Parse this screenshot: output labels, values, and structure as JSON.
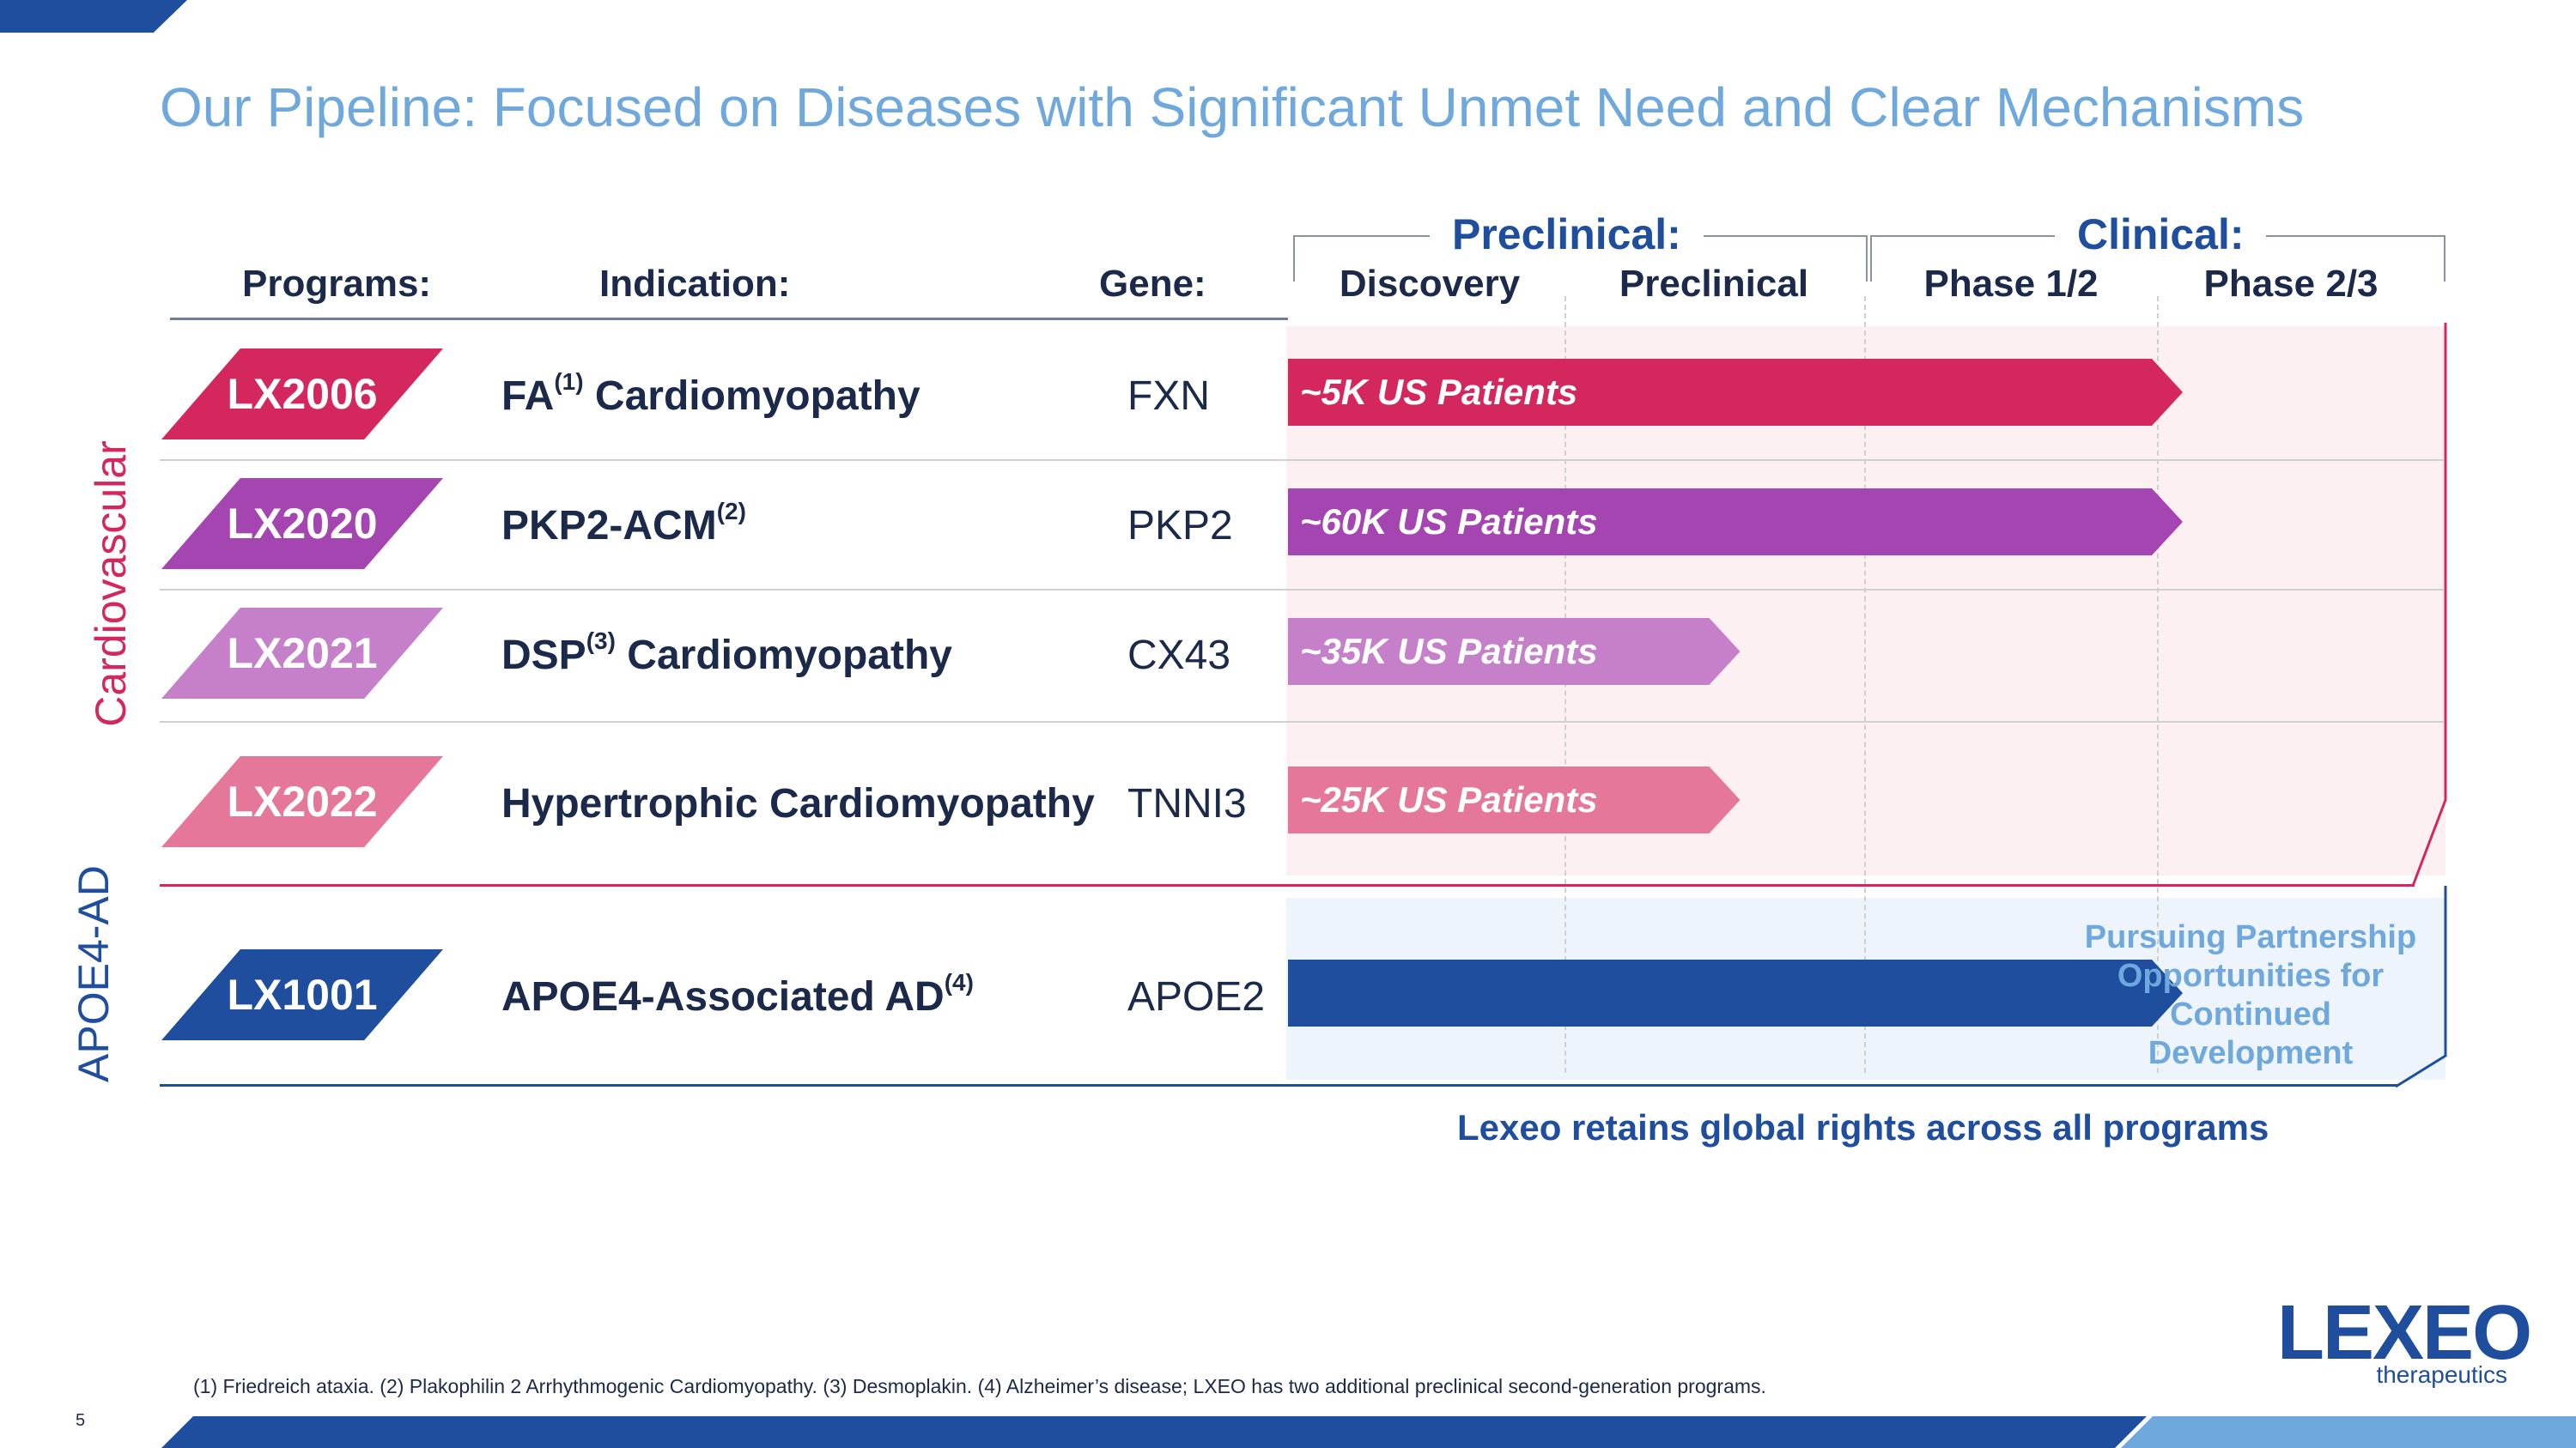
{
  "title": "Our Pipeline: Focused on Diseases with Significant Unmet Need and Clear Mechanisms",
  "columns": {
    "programs": "Programs:",
    "indication": "Indication:",
    "gene": "Gene:"
  },
  "stage_groups": {
    "preclinical": "Preclinical:",
    "clinical": "Clinical:"
  },
  "phases": [
    "Discovery",
    "Preclinical",
    "Phase 1/2",
    "Phase 2/3"
  ],
  "categories": {
    "cardiovascular": "Cardiovascular",
    "apoe4": "APOE4-AD"
  },
  "programs": [
    {
      "id": "LX2006",
      "indication": "FA",
      "sup": "(1)",
      "indication_rest": " Cardiomyopathy",
      "gene": "FXN",
      "bar_label": "~5K US Patients",
      "color": "#D4275E",
      "progress_phase": 3
    },
    {
      "id": "LX2020",
      "indication": "PKP2-ACM",
      "sup": "(2)",
      "indication_rest": "",
      "gene": "PKP2",
      "bar_label": "~60K US Patients",
      "color": "#A445B2",
      "progress_phase": 3
    },
    {
      "id": "LX2021",
      "indication": "DSP",
      "sup": "(3)",
      "indication_rest": " Cardiomyopathy",
      "gene": "CX43",
      "bar_label": "~35K US Patients",
      "color": "#C580C9",
      "progress_phase": 1.5
    },
    {
      "id": "LX2022",
      "indication": "Hypertrophic Cardiomyopathy",
      "sup": "",
      "indication_rest": "",
      "gene": "TNNI3",
      "bar_label": "~25K US Patients",
      "color": "#E5779A",
      "progress_phase": 1.5
    },
    {
      "id": "LX1001",
      "indication": "APOE4-Associated AD",
      "sup": "(4)",
      "indication_rest": "",
      "gene": "APOE2",
      "bar_label": "",
      "color": "#1E4E9D",
      "progress_phase": 3
    }
  ],
  "partnership_note": "Pursuing Partnership Opportunities for Continued Development",
  "rights_note": "Lexeo retains global rights across all programs",
  "footnote": "(1) Friedreich ataxia. (2) Plakophilin 2 Arrhythmogenic Cardiomyopathy.  (3) Desmoplakin. (4) Alzheimer’s disease; LXEO has two additional preclinical second-generation programs.",
  "page_number": "5",
  "logo": {
    "main": "LEXEO",
    "sub": "therapeutics"
  },
  "colors": {
    "title": "#6FA8DC",
    "navy": "#1F4E9E",
    "cardio_accent": "#D4275E",
    "cardio_bg": "#FCF0F3",
    "apoe_bg": "#EEF4FB"
  }
}
